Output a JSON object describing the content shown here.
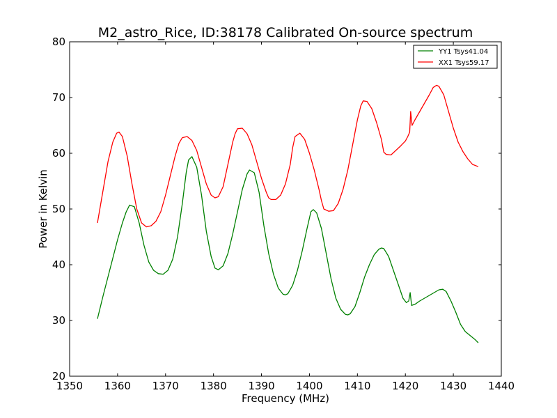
{
  "chart_data": {
    "type": "line",
    "title": "M2_astro_Rice, ID:38178 Calibrated On-source spectrum",
    "xlabel": "Frequency (MHz)",
    "ylabel": "Power in Kelvin",
    "xlim": [
      1350,
      1440
    ],
    "ylim": [
      20,
      80
    ],
    "xticks": [
      "1350",
      "1360",
      "1370",
      "1380",
      "1390",
      "1400",
      "1410",
      "1420",
      "1430",
      "1440"
    ],
    "yticks": [
      "20",
      "30",
      "40",
      "50",
      "60",
      "70",
      "80"
    ],
    "grid": false,
    "legend_position": "top-right",
    "series": [
      {
        "name": "YY1 Tsys41.04",
        "color": "#008000",
        "x": [
          1355.8,
          1357.0,
          1358.5,
          1360.0,
          1361.0,
          1361.8,
          1362.5,
          1363.5,
          1364.5,
          1365.5,
          1366.5,
          1367.5,
          1368.5,
          1369.5,
          1370.5,
          1371.5,
          1372.5,
          1373.5,
          1374.3,
          1374.8,
          1375.5,
          1376.5,
          1377.5,
          1378.5,
          1379.5,
          1380.3,
          1381.0,
          1382.0,
          1383.0,
          1384.0,
          1385.0,
          1386.0,
          1387.0,
          1387.5,
          1388.5,
          1389.5,
          1390.5,
          1391.5,
          1392.5,
          1393.5,
          1394.5,
          1395.0,
          1395.5,
          1396.5,
          1397.5,
          1398.5,
          1399.5,
          1400.3,
          1400.8,
          1401.5,
          1402.5,
          1403.5,
          1404.5,
          1405.5,
          1406.5,
          1407.5,
          1408.0,
          1408.5,
          1409.5,
          1410.5,
          1411.5,
          1412.5,
          1413.5,
          1414.5,
          1415.0,
          1415.5,
          1416.5,
          1417.5,
          1418.5,
          1419.5,
          1420.2,
          1420.7,
          1421.0,
          1421.3,
          1422.0,
          1423.0,
          1424.0,
          1425.0,
          1426.0,
          1427.0,
          1427.8,
          1428.5,
          1429.5,
          1430.5,
          1431.5,
          1432.5,
          1433.5,
          1434.5,
          1435.2
        ],
        "y": [
          30.3,
          34.5,
          39.5,
          44.5,
          47.5,
          49.5,
          50.7,
          50.4,
          47.5,
          43.5,
          40.5,
          39.0,
          38.4,
          38.3,
          39.0,
          41.0,
          45.0,
          51.0,
          56.5,
          58.8,
          59.4,
          57.5,
          52.5,
          46.0,
          41.5,
          39.4,
          39.1,
          39.8,
          42.0,
          45.5,
          49.5,
          53.5,
          56.3,
          57.0,
          56.5,
          53.0,
          47.0,
          42.0,
          38.3,
          35.8,
          34.7,
          34.6,
          34.8,
          36.3,
          39.0,
          42.5,
          46.5,
          49.5,
          49.9,
          49.3,
          46.5,
          42.0,
          37.5,
          34.0,
          32.0,
          31.1,
          31.0,
          31.2,
          32.5,
          35.0,
          37.8,
          40.0,
          41.8,
          42.8,
          43.0,
          42.9,
          41.5,
          39.0,
          36.5,
          34.0,
          33.2,
          33.5,
          35.0,
          32.7,
          32.9,
          33.5,
          34.0,
          34.5,
          35.0,
          35.5,
          35.6,
          35.2,
          33.5,
          31.5,
          29.3,
          28.0,
          27.3,
          26.6,
          26.0
        ]
      },
      {
        "name": "XX1 Tsys59.17",
        "color": "#ff0000",
        "x": [
          1355.8,
          1357.0,
          1358.0,
          1359.0,
          1359.8,
          1360.3,
          1361.0,
          1362.0,
          1363.0,
          1364.0,
          1365.0,
          1366.0,
          1367.0,
          1368.0,
          1369.0,
          1370.0,
          1371.0,
          1372.0,
          1372.8,
          1373.5,
          1374.5,
          1375.5,
          1376.5,
          1377.5,
          1378.5,
          1379.5,
          1380.3,
          1381.0,
          1382.0,
          1383.0,
          1384.0,
          1384.5,
          1385.0,
          1386.0,
          1387.0,
          1388.0,
          1389.0,
          1390.0,
          1391.0,
          1391.5,
          1392.0,
          1393.0,
          1394.0,
          1395.0,
          1396.0,
          1396.5,
          1397.0,
          1398.0,
          1399.0,
          1400.0,
          1401.0,
          1402.0,
          1402.5,
          1403.0,
          1404.0,
          1405.0,
          1406.0,
          1407.0,
          1408.0,
          1409.0,
          1410.0,
          1410.7,
          1411.2,
          1412.0,
          1413.0,
          1414.0,
          1415.0,
          1415.5,
          1416.0,
          1417.0,
          1418.0,
          1419.0,
          1420.0,
          1420.5,
          1420.9,
          1421.1,
          1421.4,
          1422.0,
          1423.0,
          1424.0,
          1425.0,
          1425.8,
          1426.5,
          1427.0,
          1428.0,
          1429.0,
          1430.0,
          1431.0,
          1432.0,
          1433.0,
          1434.0,
          1435.2
        ],
        "y": [
          47.5,
          53.5,
          58.5,
          62.0,
          63.6,
          63.8,
          63.0,
          59.5,
          54.5,
          50.0,
          47.5,
          46.8,
          47.0,
          47.8,
          49.5,
          52.5,
          56.0,
          59.5,
          61.8,
          62.8,
          63.0,
          62.3,
          60.5,
          57.5,
          54.5,
          52.5,
          52.0,
          52.2,
          54.0,
          58.0,
          62.0,
          63.5,
          64.4,
          64.5,
          63.5,
          61.5,
          58.5,
          55.5,
          53.0,
          52.0,
          51.7,
          51.7,
          52.5,
          54.5,
          58.0,
          61.0,
          63.0,
          63.6,
          62.5,
          60.0,
          57.0,
          53.5,
          51.5,
          50.0,
          49.6,
          49.7,
          51.0,
          53.5,
          57.0,
          61.5,
          66.0,
          68.5,
          69.4,
          69.3,
          68.0,
          65.5,
          62.5,
          60.2,
          59.8,
          59.7,
          60.5,
          61.3,
          62.2,
          63.0,
          63.8,
          67.5,
          65.0,
          66.0,
          67.5,
          69.0,
          70.5,
          71.8,
          72.2,
          72.0,
          70.5,
          67.5,
          64.5,
          62.0,
          60.3,
          59.0,
          58.0,
          57.6
        ]
      }
    ]
  }
}
